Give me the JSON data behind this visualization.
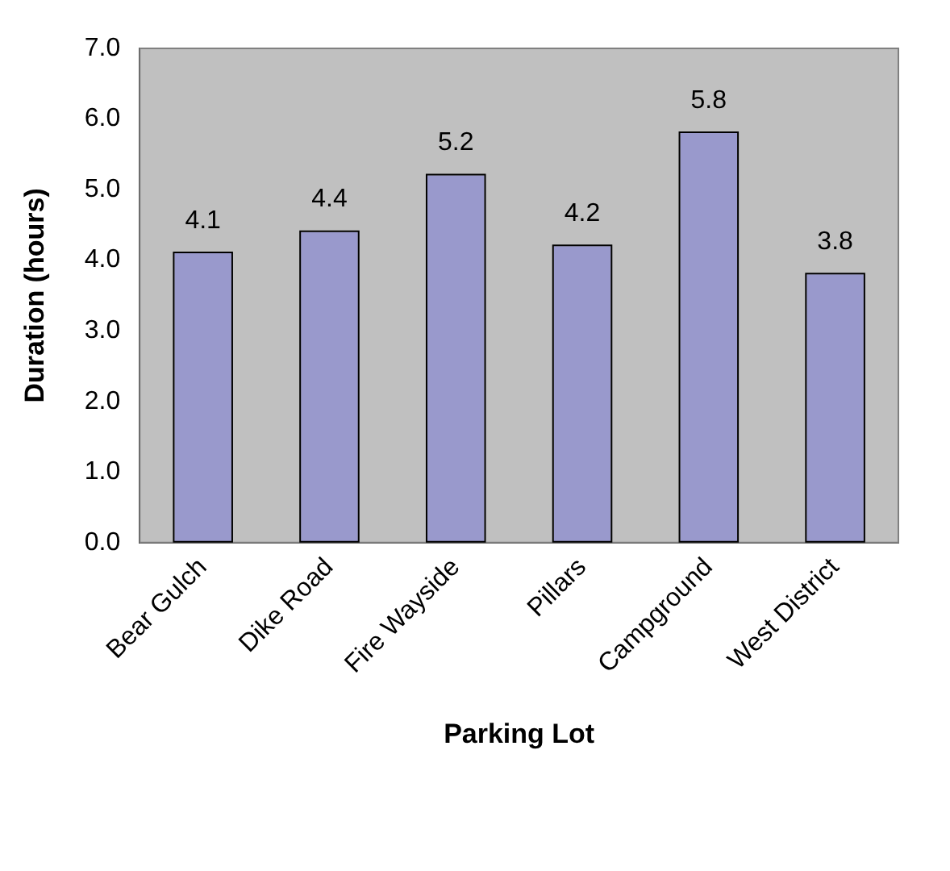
{
  "chart_data": {
    "type": "bar",
    "xlabel": "Parking Lot",
    "ylabel": "Duration (hours)",
    "categories": [
      "Bear Gulch",
      "Dike Road",
      "Fire Wayside",
      "Pillars",
      "Campground",
      "West District"
    ],
    "values": [
      4.1,
      4.4,
      5.2,
      4.2,
      5.8,
      3.8
    ],
    "color": "#9999cc",
    "ylim": [
      0,
      7
    ],
    "yticks": [
      {
        "value": 0,
        "label": "0.0"
      },
      {
        "value": 1,
        "label": "1.0"
      },
      {
        "value": 2,
        "label": "2.0"
      },
      {
        "value": 3,
        "label": "3.0"
      },
      {
        "value": 4,
        "label": "4.0"
      },
      {
        "value": 5,
        "label": "5.0"
      },
      {
        "value": 6,
        "label": "6.0"
      },
      {
        "value": 7,
        "label": "7.0"
      }
    ],
    "data_labels": true
  }
}
